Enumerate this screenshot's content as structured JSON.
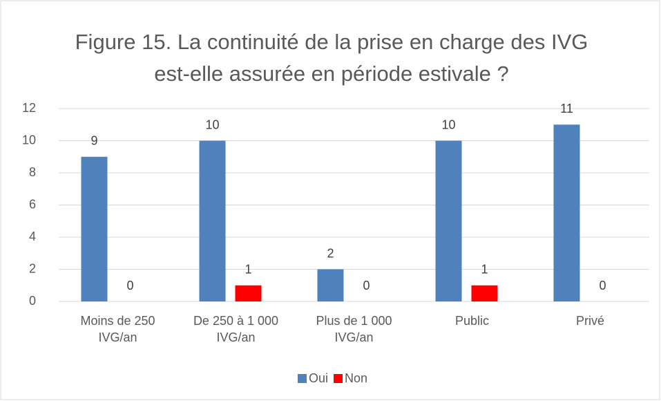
{
  "chart_data": {
    "type": "bar",
    "title": "Figure 15. La continuité de la prise en charge des IVG est-elle assurée en période estivale ?",
    "categories": [
      "Moins de 250 IVG/an",
      "De 250 à 1 000 IVG/an",
      "Plus de 1 000 IVG/an",
      "Public",
      "Privé"
    ],
    "series": [
      {
        "name": "Oui",
        "color": "#4f81bd",
        "values": [
          9,
          10,
          2,
          10,
          11
        ]
      },
      {
        "name": "Non",
        "color": "#ff0000",
        "values": [
          0,
          1,
          0,
          1,
          0
        ]
      }
    ],
    "ylim": [
      0,
      12
    ],
    "yticks": [
      0,
      2,
      4,
      6,
      8,
      10,
      12
    ],
    "grid": true,
    "legend": "bottom"
  }
}
